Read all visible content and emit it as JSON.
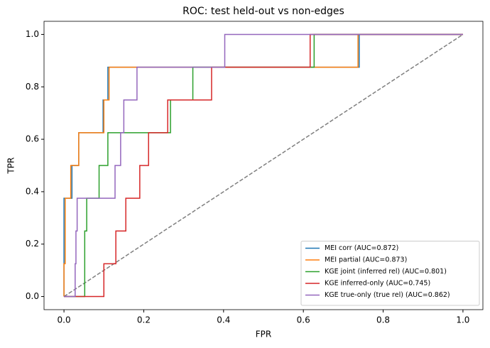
{
  "chart_data": {
    "type": "line",
    "title": "ROC: test held-out vs non-edges",
    "x_label": "FPR",
    "y_label": "TPR",
    "xlim": [
      -0.05,
      1.05
    ],
    "ylim": [
      -0.05,
      1.05
    ],
    "xticks": [
      {
        "value": 0,
        "label": "0.0"
      },
      {
        "value": 0.2,
        "label": "0.2"
      },
      {
        "value": 0.4,
        "label": "0.4"
      },
      {
        "value": 0.6,
        "label": "0.6"
      },
      {
        "value": 0.8,
        "label": "0.8"
      },
      {
        "value": 1,
        "label": "1.0"
      }
    ],
    "yticks": [
      {
        "value": 0,
        "label": "0.0"
      },
      {
        "value": 0.2,
        "label": "0.2"
      },
      {
        "value": 0.4,
        "label": "0.4"
      },
      {
        "value": 0.6,
        "label": "0.6"
      },
      {
        "value": 0.8,
        "label": "0.8"
      },
      {
        "value": 1,
        "label": "1.0"
      }
    ],
    "grid": false,
    "legend": "lower right",
    "series": [
      {
        "name": "MEI corr (AUC=0.872)",
        "color": "#1f77b4",
        "x": [
          0,
          0,
          0.02,
          0.02,
          0.037,
          0.037,
          0.098,
          0.098,
          0.11,
          0.11,
          0.74,
          0.74,
          1
        ],
        "values": [
          0,
          0.375,
          0.375,
          0.5,
          0.5,
          0.625,
          0.625,
          0.75,
          0.75,
          0.875,
          0.875,
          1,
          1
        ]
      },
      {
        "name": "MEI partial (AUC=0.873)",
        "color": "#ff7f0e",
        "x": [
          0,
          0,
          0.003,
          0.003,
          0.017,
          0.017,
          0.037,
          0.037,
          0.1,
          0.1,
          0.113,
          0.113,
          0.737,
          0.737,
          1
        ],
        "values": [
          0,
          0.125,
          0.125,
          0.375,
          0.375,
          0.5,
          0.5,
          0.625,
          0.625,
          0.75,
          0.75,
          0.875,
          0.875,
          1,
          1
        ]
      },
      {
        "name": "KGE joint (inferred rel) (AUC=0.801)",
        "color": "#2ca02c",
        "x": [
          0,
          0.052,
          0.052,
          0.057,
          0.057,
          0.088,
          0.088,
          0.11,
          0.11,
          0.267,
          0.267,
          0.323,
          0.323,
          0.627,
          0.627,
          1
        ],
        "values": [
          0,
          0,
          0.25,
          0.25,
          0.375,
          0.375,
          0.5,
          0.5,
          0.625,
          0.625,
          0.75,
          0.75,
          0.875,
          0.875,
          1,
          1
        ]
      },
      {
        "name": "KGE inferred-only (AUC=0.745)",
        "color": "#d62728",
        "x": [
          0,
          0.1,
          0.1,
          0.13,
          0.13,
          0.155,
          0.155,
          0.19,
          0.19,
          0.212,
          0.212,
          0.26,
          0.26,
          0.37,
          0.37,
          0.617,
          0.617,
          1
        ],
        "values": [
          0,
          0,
          0.125,
          0.125,
          0.25,
          0.25,
          0.375,
          0.375,
          0.5,
          0.5,
          0.625,
          0.625,
          0.75,
          0.75,
          0.875,
          0.875,
          1,
          1
        ]
      },
      {
        "name": "KGE true-only (true rel) (AUC=0.862)",
        "color": "#9467bd",
        "x": [
          0,
          0.028,
          0.028,
          0.03,
          0.03,
          0.033,
          0.033,
          0.128,
          0.128,
          0.142,
          0.142,
          0.15,
          0.15,
          0.183,
          0.183,
          0.403,
          0.403,
          1
        ],
        "values": [
          0,
          0,
          0.125,
          0.125,
          0.25,
          0.25,
          0.375,
          0.375,
          0.5,
          0.5,
          0.625,
          0.625,
          0.75,
          0.75,
          0.875,
          0.875,
          1,
          1
        ]
      }
    ],
    "reference_line": {
      "x": [
        0,
        1
      ],
      "values": [
        0,
        1
      ],
      "color": "#7f7f7f",
      "dashed": true
    }
  }
}
